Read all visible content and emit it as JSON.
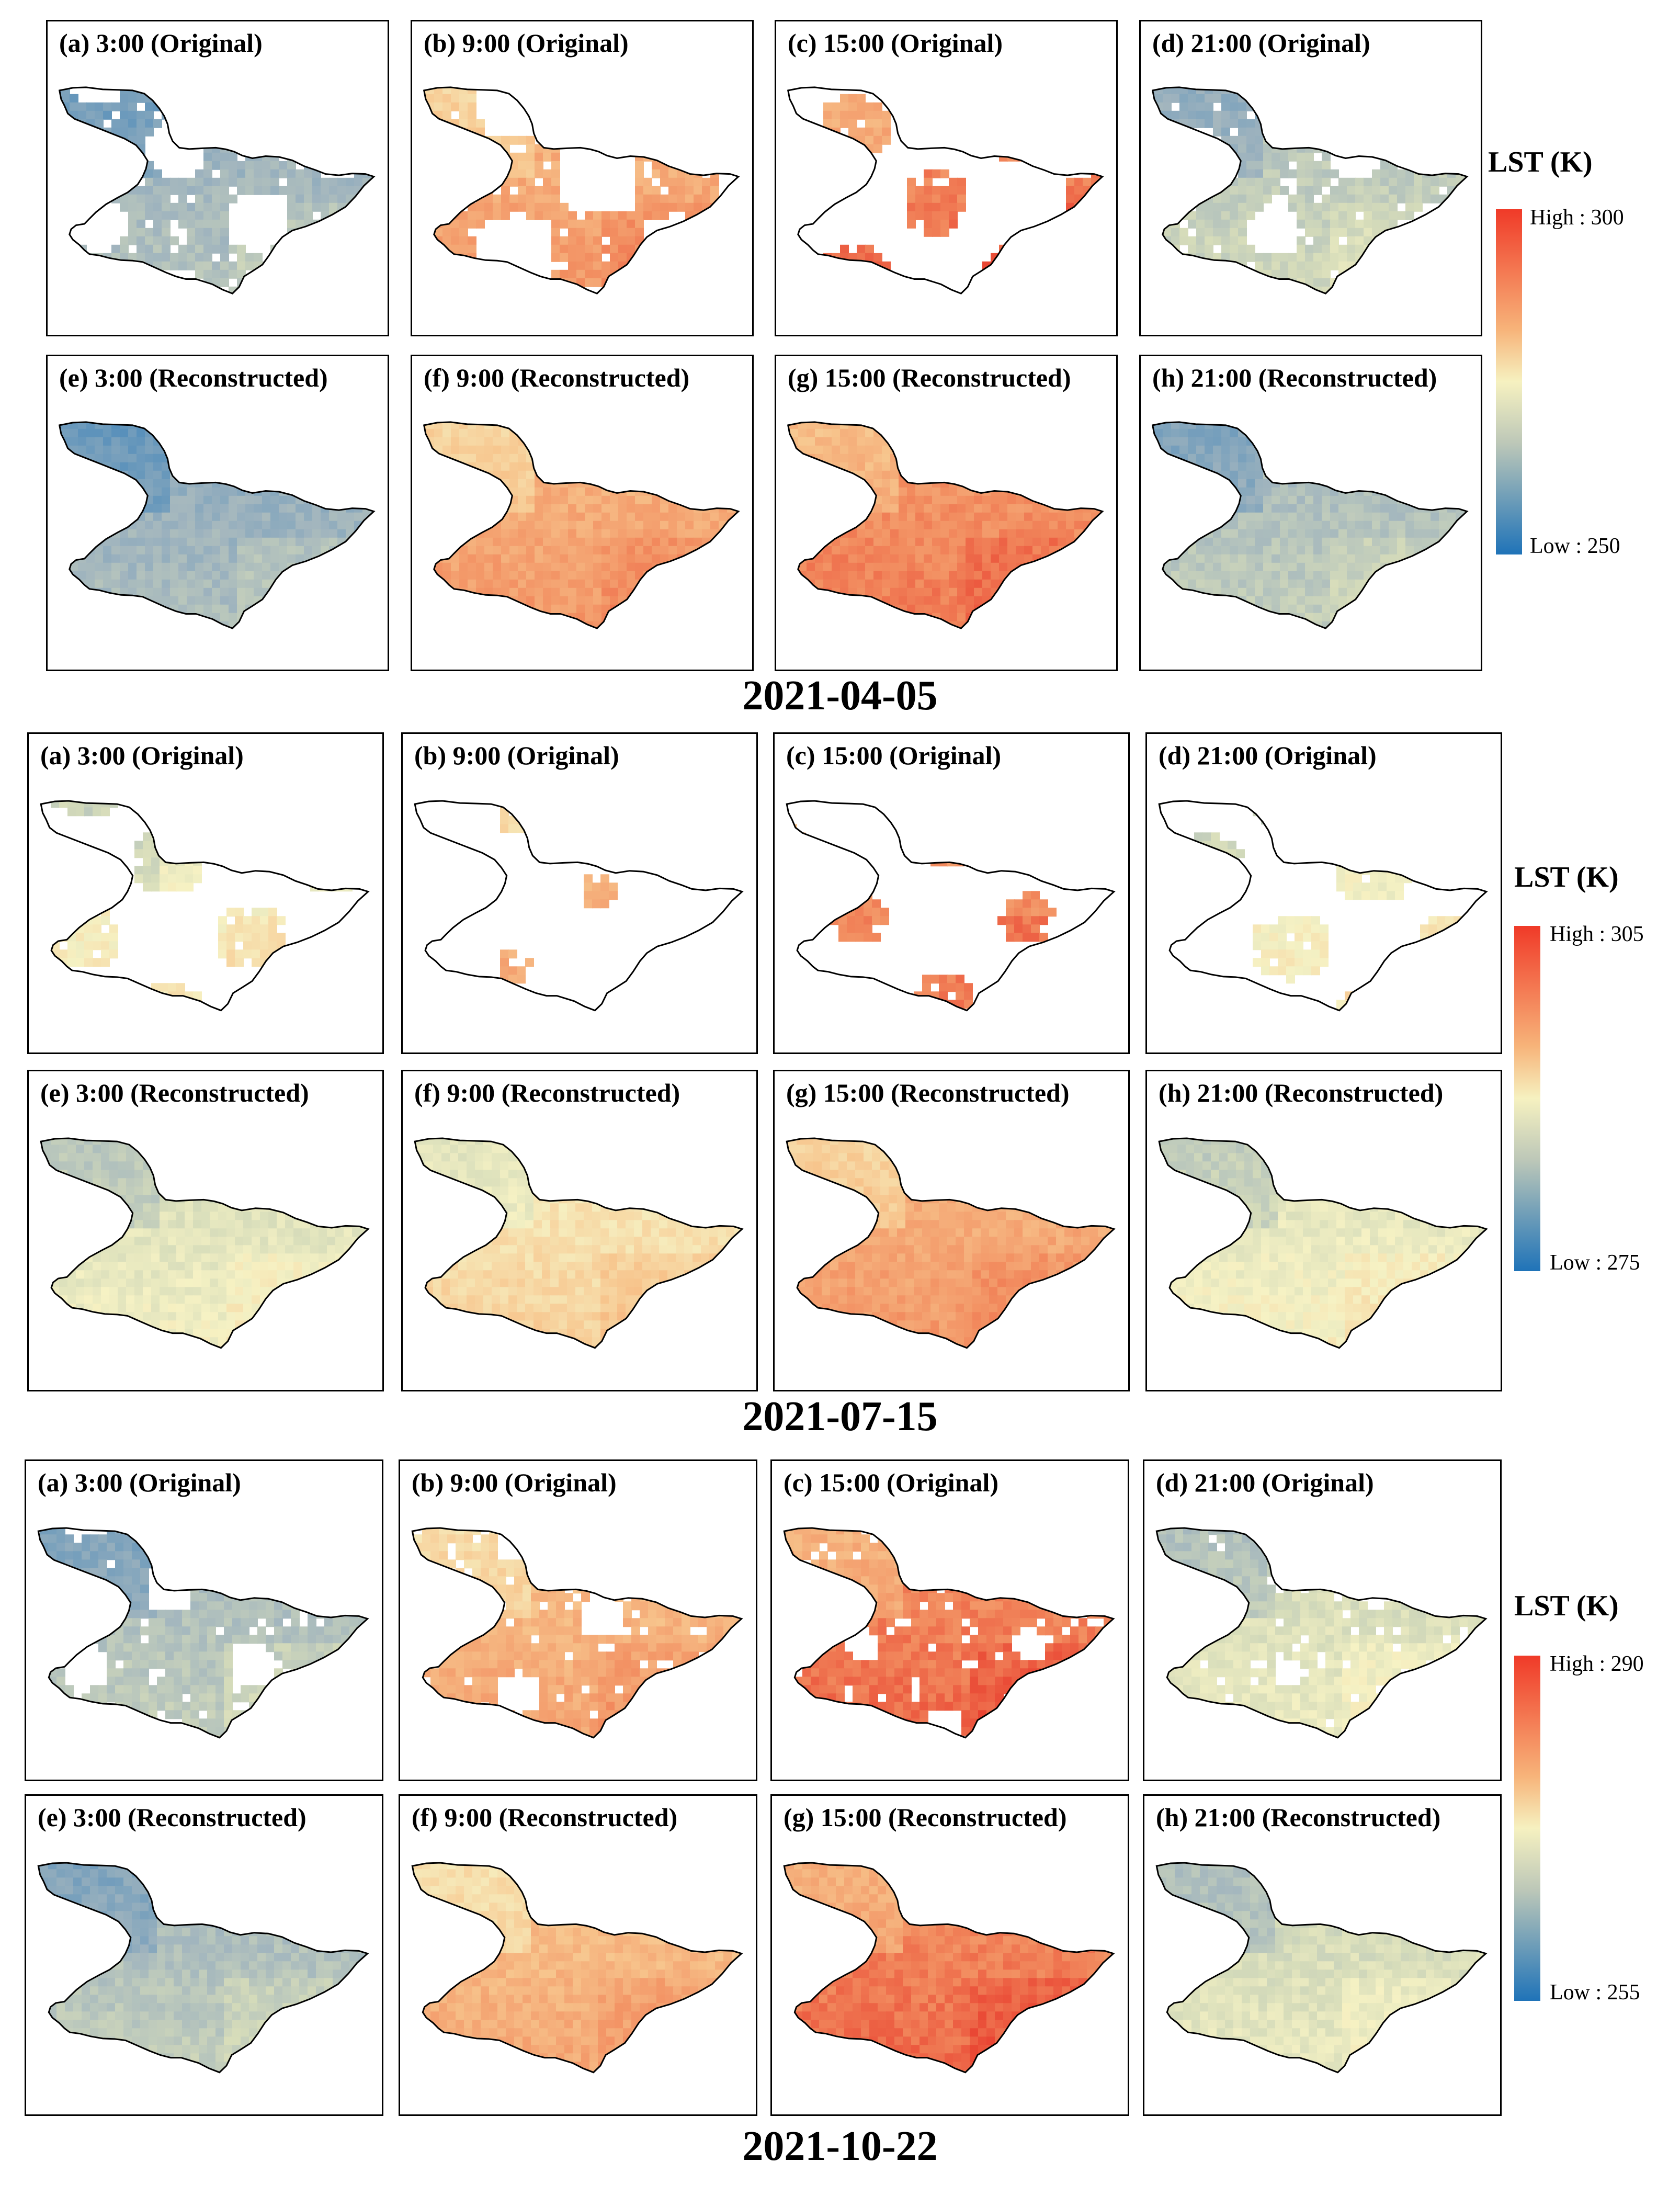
{
  "legend_title": "LST (K)",
  "groups": [
    {
      "date": "2021-04-05",
      "legend": {
        "high": "High : 300",
        "low": "Low : 250"
      },
      "panels": [
        {
          "title": "(a) 3:00 (Original)",
          "coverage": 0.7,
          "temp": 0.32
        },
        {
          "title": "(b) 9:00 (Original)",
          "coverage": 0.55,
          "temp": 0.78
        },
        {
          "title": "(c) 15:00 (Original)",
          "coverage": 0.35,
          "temp": 0.88
        },
        {
          "title": "(d) 21:00 (Original)",
          "coverage": 0.75,
          "temp": 0.4
        },
        {
          "title": "(e) 3:00 (Reconstructed)",
          "coverage": 1.0,
          "temp": 0.3
        },
        {
          "title": "(f) 9:00 (Reconstructed)",
          "coverage": 1.0,
          "temp": 0.78
        },
        {
          "title": "(g) 15:00 (Reconstructed)",
          "coverage": 1.0,
          "temp": 0.85
        },
        {
          "title": "(h) 21:00 (Reconstructed)",
          "coverage": 1.0,
          "temp": 0.36
        }
      ]
    },
    {
      "date": "2021-07-15",
      "legend": {
        "high": "High : 305",
        "low": "Low : 275"
      },
      "panels": [
        {
          "title": "(a) 3:00 (Original)",
          "coverage": 0.35,
          "temp": 0.55
        },
        {
          "title": "(b) 9:00 (Original)",
          "coverage": 0.12,
          "temp": 0.75
        },
        {
          "title": "(c) 15:00 (Original)",
          "coverage": 0.22,
          "temp": 0.85
        },
        {
          "title": "(d) 21:00 (Original)",
          "coverage": 0.4,
          "temp": 0.55
        },
        {
          "title": "(e) 3:00 (Reconstructed)",
          "coverage": 1.0,
          "temp": 0.5
        },
        {
          "title": "(f) 9:00 (Reconstructed)",
          "coverage": 1.0,
          "temp": 0.62
        },
        {
          "title": "(g) 15:00 (Reconstructed)",
          "coverage": 1.0,
          "temp": 0.78
        },
        {
          "title": "(h) 21:00 (Reconstructed)",
          "coverage": 1.0,
          "temp": 0.52
        }
      ]
    },
    {
      "date": "2021-10-22",
      "legend": {
        "high": "High : 290",
        "low": "Low : 255"
      },
      "panels": [
        {
          "title": "(a) 3:00 (Original)",
          "coverage": 0.8,
          "temp": 0.36
        },
        {
          "title": "(b) 9:00 (Original)",
          "coverage": 0.82,
          "temp": 0.75
        },
        {
          "title": "(c) 15:00 (Original)",
          "coverage": 0.9,
          "temp": 0.88
        },
        {
          "title": "(d) 21:00 (Original)",
          "coverage": 0.92,
          "temp": 0.48
        },
        {
          "title": "(e) 3:00 (Reconstructed)",
          "coverage": 1.0,
          "temp": 0.36
        },
        {
          "title": "(f) 9:00 (Reconstructed)",
          "coverage": 1.0,
          "temp": 0.74
        },
        {
          "title": "(g) 15:00 (Reconstructed)",
          "coverage": 1.0,
          "temp": 0.88
        },
        {
          "title": "(h) 21:00 (Reconstructed)",
          "coverage": 1.0,
          "temp": 0.47
        }
      ]
    }
  ]
}
